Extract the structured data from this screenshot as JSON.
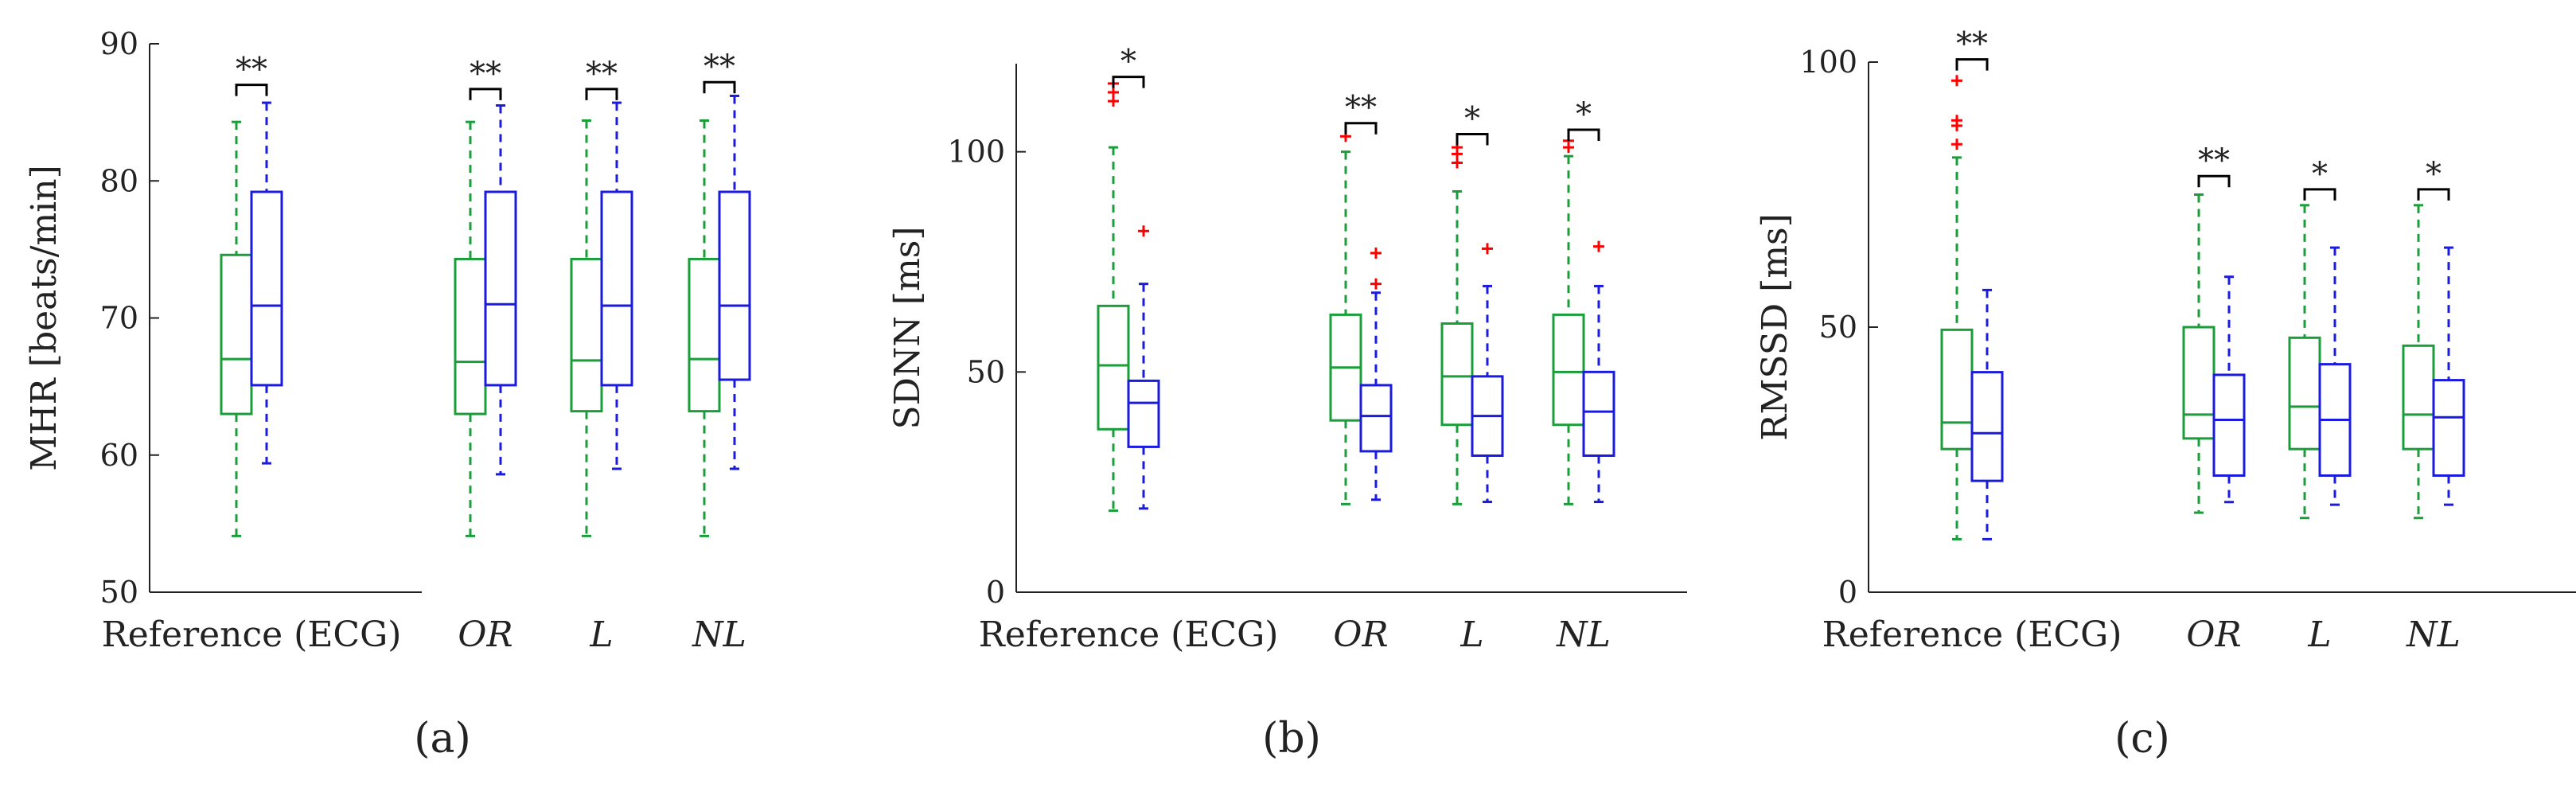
{
  "colors": {
    "axis": "#222222",
    "ppg": "#1a9e3a",
    "ecg": "#1b1be0",
    "outlier": "#ff0000",
    "bracket": "#000000"
  },
  "chart_data": [
    {
      "type": "box",
      "panel_label": "(a)",
      "ylabel": "MHR [beats/min]",
      "ylim": [
        50,
        90
      ],
      "yticks": [
        50,
        60,
        70,
        80,
        90
      ],
      "categories": [
        "Reference (ECG)",
        "OR",
        "L",
        "NL"
      ],
      "series": [
        {
          "name": "green",
          "color_key": "ppg",
          "boxes": [
            {
              "min": 54.1,
              "q1": 63.0,
              "median": 67.0,
              "q3": 74.6,
              "max": 84.3,
              "outliers": []
            },
            {
              "min": 54.1,
              "q1": 63.0,
              "median": 66.8,
              "q3": 74.3,
              "max": 84.3,
              "outliers": []
            },
            {
              "min": 54.1,
              "q1": 63.2,
              "median": 66.9,
              "q3": 74.3,
              "max": 84.4,
              "outliers": []
            },
            {
              "min": 54.1,
              "q1": 63.2,
              "median": 67.0,
              "q3": 74.3,
              "max": 84.4,
              "outliers": []
            }
          ]
        },
        {
          "name": "blue",
          "color_key": "ecg",
          "boxes": [
            {
              "min": 59.4,
              "q1": 65.1,
              "median": 70.9,
              "q3": 79.2,
              "max": 85.7,
              "outliers": []
            },
            {
              "min": 58.6,
              "q1": 65.1,
              "median": 71.0,
              "q3": 79.2,
              "max": 85.5,
              "outliers": []
            },
            {
              "min": 59.0,
              "q1": 65.1,
              "median": 70.9,
              "q3": 79.2,
              "max": 85.7,
              "outliers": []
            },
            {
              "min": 59.0,
              "q1": 65.5,
              "median": 70.9,
              "q3": 79.2,
              "max": 86.2,
              "outliers": []
            }
          ]
        }
      ],
      "significance": [
        {
          "group": 0,
          "label": "**",
          "y": 87.0
        },
        {
          "group": 1,
          "label": "**",
          "y": 86.7
        },
        {
          "group": 2,
          "label": "**",
          "y": 86.7
        },
        {
          "group": 3,
          "label": "**",
          "y": 87.2
        }
      ]
    },
    {
      "type": "box",
      "panel_label": "(b)",
      "ylabel": "SDNN [ms]",
      "ylim": [
        0,
        120
      ],
      "yticks": [
        0,
        50,
        100
      ],
      "categories": [
        "Reference (ECG)",
        "OR",
        "L",
        "NL"
      ],
      "series": [
        {
          "name": "green",
          "color_key": "ppg",
          "boxes": [
            {
              "min": 18.5,
              "q1": 37.0,
              "median": 51.5,
              "q3": 65.0,
              "max": 101.0,
              "outliers": [
                111.5,
                113.5,
                115.5
              ]
            },
            {
              "min": 20.0,
              "q1": 39.0,
              "median": 51.0,
              "q3": 63.0,
              "max": 100.0,
              "outliers": [
                103.5
              ]
            },
            {
              "min": 20.0,
              "q1": 38.0,
              "median": 49.0,
              "q3": 61.0,
              "max": 91.0,
              "outliers": [
                97.5,
                99.5,
                101.0
              ]
            },
            {
              "min": 20.0,
              "q1": 38.0,
              "median": 50.0,
              "q3": 63.0,
              "max": 99.0,
              "outliers": [
                101.0,
                102.5
              ]
            }
          ]
        },
        {
          "name": "blue",
          "color_key": "ecg",
          "boxes": [
            {
              "min": 19.0,
              "q1": 33.0,
              "median": 43.0,
              "q3": 48.0,
              "max": 70.0,
              "outliers": [
                82.0
              ]
            },
            {
              "min": 21.0,
              "q1": 32.0,
              "median": 40.0,
              "q3": 47.0,
              "max": 68.0,
              "outliers": [
                70.0,
                77.0
              ]
            },
            {
              "min": 20.5,
              "q1": 31.0,
              "median": 40.0,
              "q3": 49.0,
              "max": 69.5,
              "outliers": [
                78.0
              ]
            },
            {
              "min": 20.5,
              "q1": 31.0,
              "median": 41.0,
              "q3": 50.0,
              "max": 69.5,
              "outliers": [
                78.5
              ]
            }
          ]
        }
      ],
      "significance": [
        {
          "group": 0,
          "label": "*",
          "y": 117.0
        },
        {
          "group": 1,
          "label": "**",
          "y": 106.5
        },
        {
          "group": 2,
          "label": "*",
          "y": 104.0
        },
        {
          "group": 3,
          "label": "*",
          "y": 105.0
        }
      ]
    },
    {
      "type": "box",
      "panel_label": "(c)",
      "ylabel": "RMSSD [ms]",
      "ylim": [
        0,
        100
      ],
      "yticks": [
        0,
        50,
        100
      ],
      "categories": [
        "Reference (ECG)",
        "OR",
        "L",
        "NL"
      ],
      "series": [
        {
          "name": "green",
          "color_key": "ppg",
          "boxes": [
            {
              "min": 10.0,
              "q1": 27.0,
              "median": 32.0,
              "q3": 49.5,
              "max": 82.0,
              "outliers": [
                84.5,
                88.0,
                89.0,
                96.5
              ]
            },
            {
              "min": 15.0,
              "q1": 29.0,
              "median": 33.5,
              "q3": 50.0,
              "max": 75.0,
              "outliers": []
            },
            {
              "min": 14.0,
              "q1": 27.0,
              "median": 35.0,
              "q3": 48.0,
              "max": 73.0,
              "outliers": []
            },
            {
              "min": 14.0,
              "q1": 27.0,
              "median": 33.5,
              "q3": 46.5,
              "max": 73.0,
              "outliers": []
            }
          ]
        },
        {
          "name": "blue",
          "color_key": "ecg",
          "boxes": [
            {
              "min": 10.0,
              "q1": 21.0,
              "median": 30.0,
              "q3": 41.5,
              "max": 57.0,
              "outliers": []
            },
            {
              "min": 17.0,
              "q1": 22.0,
              "median": 32.5,
              "q3": 41.0,
              "max": 59.5,
              "outliers": []
            },
            {
              "min": 16.5,
              "q1": 22.0,
              "median": 32.5,
              "q3": 43.0,
              "max": 65.0,
              "outliers": []
            },
            {
              "min": 16.5,
              "q1": 22.0,
              "median": 33.0,
              "q3": 40.0,
              "max": 65.0,
              "outliers": []
            }
          ]
        }
      ],
      "significance": [
        {
          "group": 0,
          "label": "**",
          "y": 100.5
        },
        {
          "group": 1,
          "label": "**",
          "y": 78.5
        },
        {
          "group": 2,
          "label": "*",
          "y": 76.0
        },
        {
          "group": 3,
          "label": "*",
          "y": 76.0
        }
      ]
    }
  ]
}
